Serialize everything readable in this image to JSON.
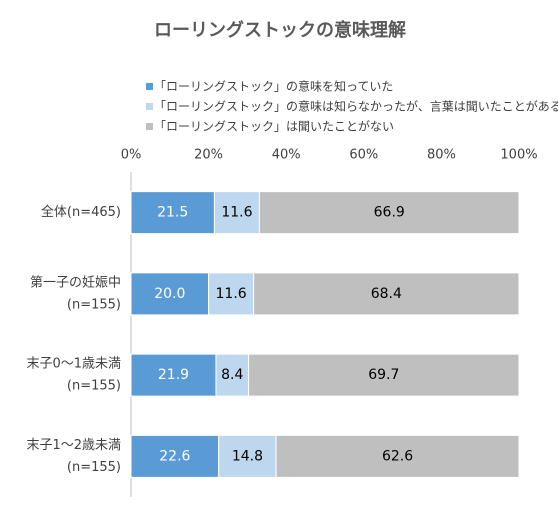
{
  "chart_data": {
    "type": "stacked-bar-horizontal",
    "title": "ローリングストックの意味理解",
    "categories": [
      [
        "全体(n=465)"
      ],
      [
        "第一子の妊娠中",
        "(n=155)"
      ],
      [
        "末子0～1歳未満",
        "(n=155)"
      ],
      [
        "末子1～2歳未満",
        "(n=155)"
      ]
    ],
    "series": [
      {
        "name": "「ローリングストック」の意味を知っていた",
        "color": "#5b9bd5",
        "values": [
          21.5,
          20,
          21.9,
          22.6
        ],
        "value_labels": [
          "21.5",
          "20.0",
          "21.9",
          "22.6"
        ]
      },
      {
        "name": "「ローリングストック」の意味は知らなかったが、言葉は聞いたことがある",
        "color": "#bdd7ee",
        "values": [
          11.6,
          11.6,
          8.4,
          14.8
        ],
        "value_labels": [
          "11.6",
          "11.6",
          "8.4",
          "14.8"
        ]
      },
      {
        "name": "「ローリングストック」は聞いたことがない",
        "color": "#bfbfbf",
        "values": [
          66.9,
          68.4,
          69.7,
          62.6
        ],
        "value_labels": [
          "66.9",
          "68.4",
          "69.7",
          "62.6"
        ]
      }
    ],
    "xlim": [
      0,
      100
    ],
    "xticks": [
      {
        "value": 0,
        "label": "0%"
      },
      {
        "value": 20,
        "label": "20%"
      },
      {
        "value": 40,
        "label": "40%"
      },
      {
        "value": 60,
        "label": "60%"
      },
      {
        "value": 80,
        "label": "80%"
      },
      {
        "value": 100,
        "label": "100%"
      }
    ],
    "grid": false
  }
}
